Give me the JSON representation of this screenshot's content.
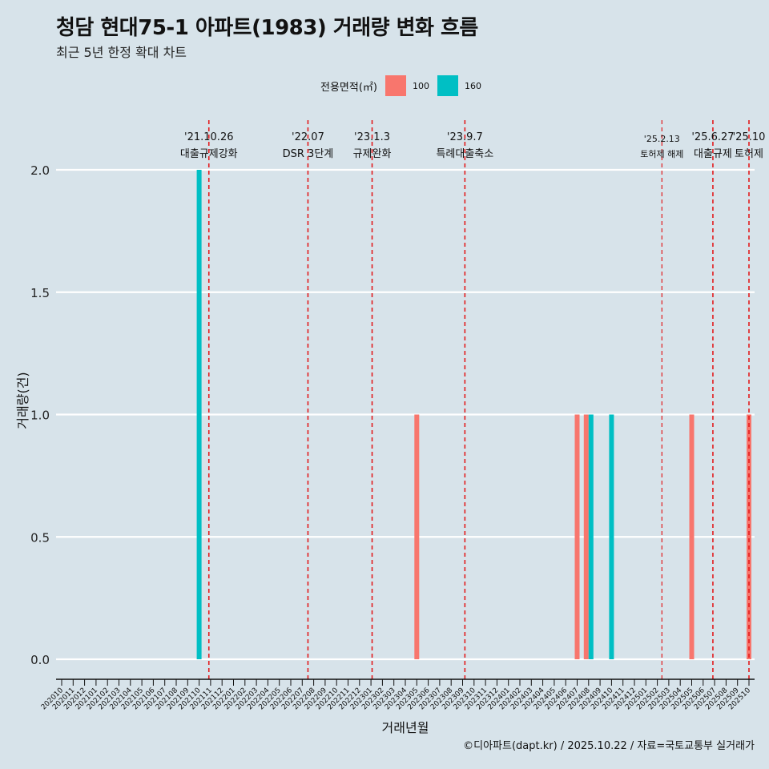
{
  "title": "청담 현대75-1 아파트(1983) 거래량 변화 흐름",
  "subtitle": "최근 5년 한정 확대 차트",
  "caption": "©디아파트(dapt.kr) / 2025.10.22 / 자료=국토교통부 실거래가",
  "legend": {
    "title": "전용면적(㎡)",
    "items": [
      {
        "label": "100",
        "color": "#f8766d"
      },
      {
        "label": "160",
        "color": "#00bfc4"
      }
    ]
  },
  "chart_data": {
    "type": "bar",
    "title": "청담 현대75-1 아파트(1983) 거래량 변화 흐름",
    "xlabel": "거래년월",
    "ylabel": "거래량(건)",
    "ylim": [
      0,
      2
    ],
    "yticks": [
      0.0,
      0.5,
      1.0,
      1.5,
      2.0
    ],
    "ytick_labels": [
      "0.0",
      "0.5",
      "1.0",
      "1.5",
      "2.0"
    ],
    "categories": [
      "202010",
      "202011",
      "202012",
      "202101",
      "202102",
      "202103",
      "202104",
      "202105",
      "202106",
      "202107",
      "202108",
      "202109",
      "202110",
      "202111",
      "202112",
      "202201",
      "202202",
      "202203",
      "202204",
      "202205",
      "202206",
      "202207",
      "202208",
      "202209",
      "202210",
      "202211",
      "202212",
      "202301",
      "202302",
      "202303",
      "202304",
      "202305",
      "202306",
      "202307",
      "202308",
      "202309",
      "202310",
      "202311",
      "202312",
      "202401",
      "202402",
      "202403",
      "202404",
      "202405",
      "202406",
      "202407",
      "202408",
      "202409",
      "202410",
      "202411",
      "202412",
      "202501",
      "202502",
      "202503",
      "202504",
      "202505",
      "202506",
      "202507",
      "202508",
      "202509",
      "202510"
    ],
    "series": [
      {
        "name": "100",
        "color": "#f8766d",
        "points": [
          {
            "x": "202305",
            "y": 1
          },
          {
            "x": "202407",
            "y": 1
          },
          {
            "x": "202408",
            "y": 1
          },
          {
            "x": "202505",
            "y": 1
          },
          {
            "x": "202510",
            "y": 1
          }
        ]
      },
      {
        "name": "160",
        "color": "#00bfc4",
        "points": [
          {
            "x": "202110",
            "y": 2
          },
          {
            "x": "202408",
            "y": 1
          },
          {
            "x": "202410",
            "y": 1
          }
        ]
      }
    ],
    "events": [
      {
        "date": "'21.10.26",
        "label": "대출규제강화",
        "at": "202110",
        "offset": 0.85
      },
      {
        "date": "'22.07",
        "label": "DSR 3단계",
        "at": "202207",
        "offset": 0.5
      },
      {
        "date": "'23.1.3",
        "label": "규제완화",
        "at": "202301",
        "offset": 0.1
      },
      {
        "date": "'23.9.7",
        "label": "특례대출축소",
        "at": "202309",
        "offset": 0.2
      },
      {
        "date": "'25.2.13",
        "label": "토허제 해제",
        "at": "202502",
        "offset": 0.4,
        "small": true
      },
      {
        "date": "'25.6.27",
        "label": "대출규제",
        "at": "202506",
        "offset": 0.85
      },
      {
        "date": "'25.10",
        "label": "토허제",
        "at": "202510",
        "offset": 0.0
      }
    ]
  }
}
